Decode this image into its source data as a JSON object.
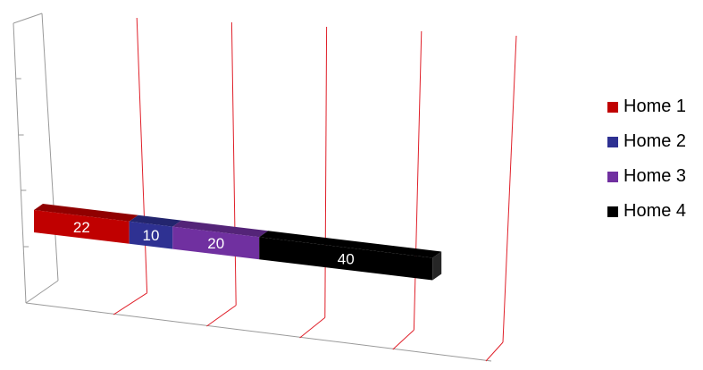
{
  "chart_data": {
    "type": "bar",
    "orientation": "horizontal",
    "stacked": true,
    "style": "3d",
    "title": "",
    "xlabel": "",
    "ylabel": "",
    "categories": [
      ""
    ],
    "xlim": [
      0,
      100
    ],
    "grid": true,
    "legend_position": "right",
    "series": [
      {
        "name": "Home 1",
        "values": [
          22
        ],
        "color": "#C00000",
        "label": "22"
      },
      {
        "name": "Home 2",
        "values": [
          10
        ],
        "color": "#2E3192",
        "label": "10"
      },
      {
        "name": "Home 3",
        "values": [
          20
        ],
        "color": "#7030A0",
        "label": "20"
      },
      {
        "name": "Home 4",
        "values": [
          40
        ],
        "color": "#000000",
        "label": "40"
      }
    ]
  }
}
